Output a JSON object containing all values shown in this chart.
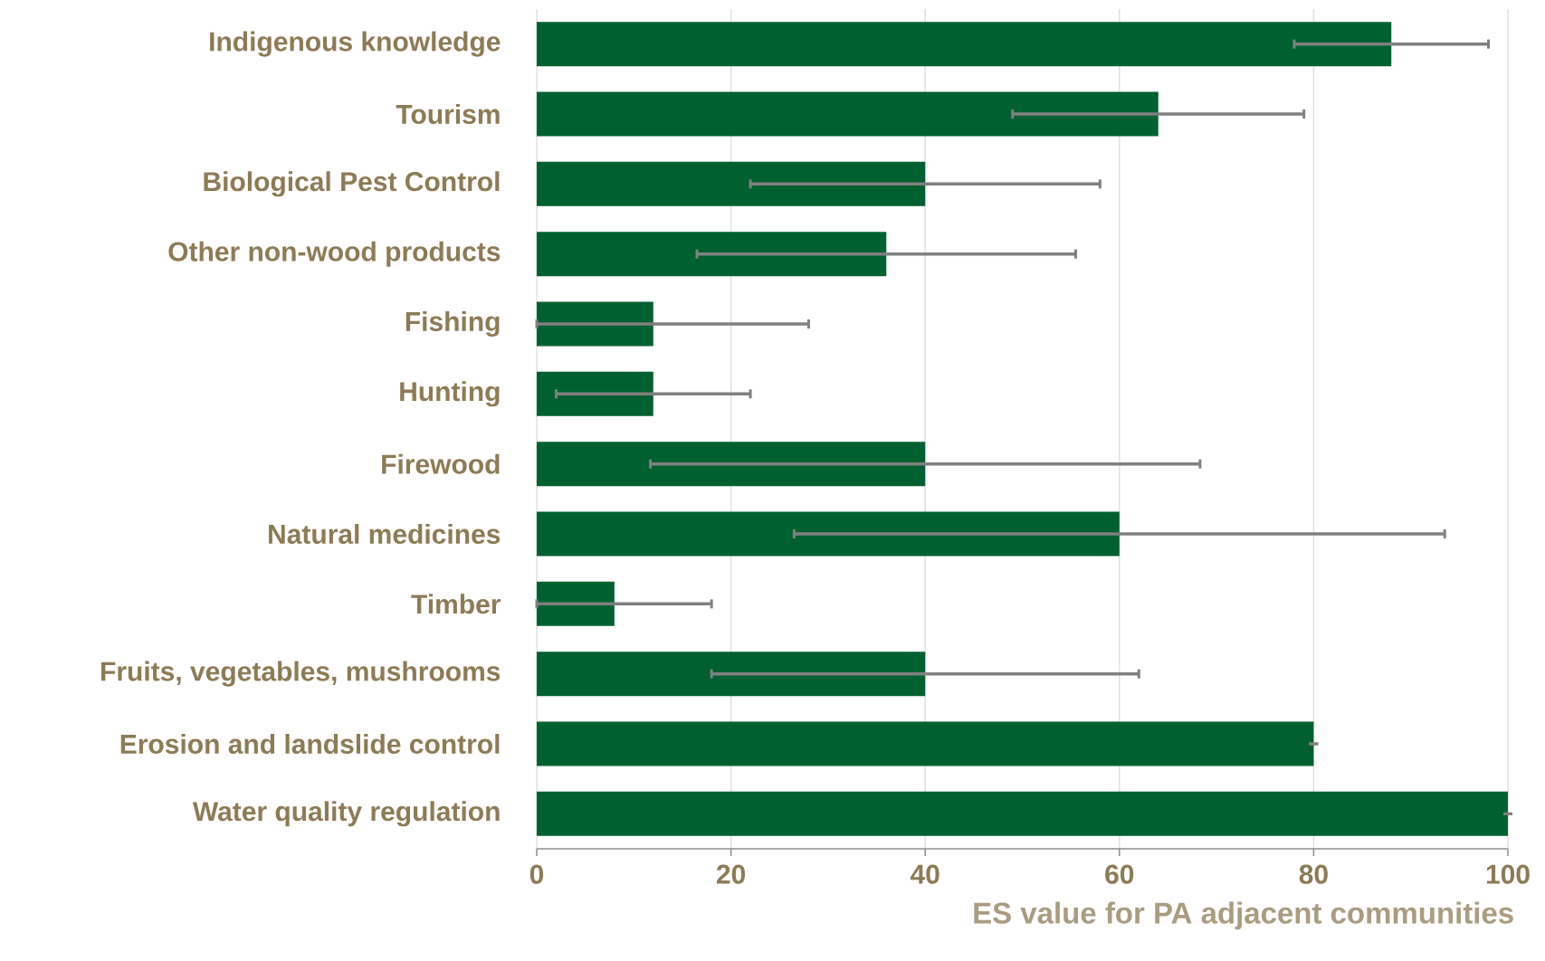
{
  "chart_data": {
    "type": "bar",
    "orientation": "horizontal",
    "xlabel": "ES value for PA adjacent communities",
    "categories": [
      "Indigenous knowledge",
      "Tourism",
      "Biological Pest Control",
      "Other non-wood products",
      "Fishing",
      "Hunting",
      "Firewood",
      "Natural medicines",
      "Timber",
      "Fruits, vegetables, mushrooms",
      "Erosion and landslide control",
      "Water quality regulation"
    ],
    "values": [
      88,
      64,
      40,
      36,
      12,
      12,
      40,
      60,
      8,
      40,
      80,
      100
    ],
    "errors": [
      10,
      15,
      18,
      19.5,
      [
        0,
        28
      ],
      10,
      28.3,
      33.5,
      [
        0,
        18
      ],
      22,
      0,
      0
    ],
    "color": "#006030",
    "xlim": [
      0,
      100
    ],
    "xticks": [
      0,
      20,
      40,
      60,
      80,
      100
    ],
    "grid": "x"
  }
}
